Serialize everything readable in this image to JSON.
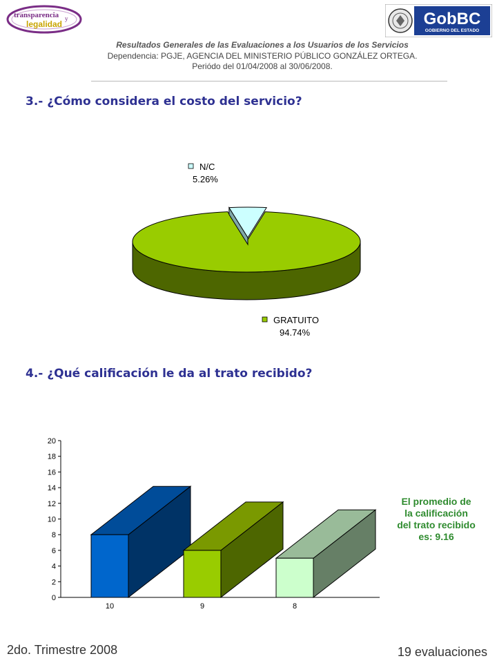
{
  "header": {
    "logo_left": {
      "line1": "transparencia",
      "connector": "y",
      "line2": "legalidad"
    },
    "logo_right": {
      "brand": "GobBC",
      "tagline": "GOBIERNO DEL ESTADO"
    },
    "title": "Resultados Generales de las Evaluaciones a los Usuarios de los Servicios",
    "dependencia": "Dependencia: PGJE, AGENCIA DEL MINISTERIO  PÚBLICO GONZÁLEZ ORTEGA.",
    "periodo": "Periódo del 01/04/2008 al 30/06/2008."
  },
  "questions": {
    "q3": "3.- ¿Cómo considera el costo del servicio?",
    "q4": "4.- ¿Qué calificación le da al trato recibido?"
  },
  "colors": {
    "pie_gratuito_top": "#99cc00",
    "pie_gratuito_side": "#4d6600",
    "pie_nc_top": "#ccffff",
    "pie_nc_side": "#7fa8a8",
    "bar10": "#0066cc",
    "bar9": "#99cc00",
    "bar8": "#ccffcc",
    "avg_text": "#2e8b2e",
    "title": "#2e3192"
  },
  "chart_data": [
    {
      "type": "pie",
      "labels": [
        "N/C",
        "GRATUITO"
      ],
      "values": [
        5.26,
        94.74
      ],
      "value_labels": [
        "5.26%",
        "94.74%"
      ],
      "legend": "labels beside slices"
    },
    {
      "type": "bar",
      "categories": [
        "10",
        "9",
        "8"
      ],
      "values": [
        8,
        6,
        5
      ],
      "ylim": [
        0,
        20
      ],
      "yticks": [
        0,
        2,
        4,
        6,
        8,
        10,
        12,
        14,
        16,
        18,
        20
      ],
      "three_d": true,
      "annotation": [
        "El promedio de",
        "la calificación",
        "del trato recibido",
        "es: 9.16"
      ]
    }
  ],
  "footer": {
    "period": "2do. Trimestre 2008",
    "count": "19 evaluaciones"
  }
}
